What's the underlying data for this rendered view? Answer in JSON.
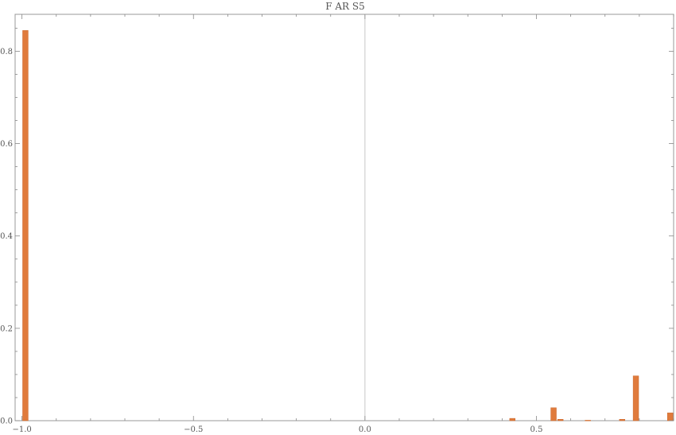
{
  "chart_data": {
    "type": "bar",
    "title": "F AR S5",
    "xlabel": "",
    "ylabel": "",
    "xlim": [
      -1.02,
      0.9
    ],
    "ylim": [
      0,
      0.88
    ],
    "bin_width": 0.02,
    "bars": [
      {
        "x": -0.99,
        "value": 0.845
      },
      {
        "x": 0.43,
        "value": 0.005
      },
      {
        "x": 0.55,
        "value": 0.028
      },
      {
        "x": 0.57,
        "value": 0.003
      },
      {
        "x": 0.65,
        "value": 0.001
      },
      {
        "x": 0.75,
        "value": 0.003
      },
      {
        "x": 0.79,
        "value": 0.097
      },
      {
        "x": 0.89,
        "value": 0.017
      }
    ],
    "x_ticks": [
      {
        "value": -1.0,
        "label": "−1.0"
      },
      {
        "value": -0.5,
        "label": "−0.5"
      },
      {
        "value": 0.0,
        "label": "0.0"
      },
      {
        "value": 0.5,
        "label": "0.5"
      }
    ],
    "y_ticks": [
      {
        "value": 0.0,
        "label": "0.0"
      },
      {
        "value": 0.2,
        "label": "0.2"
      },
      {
        "value": 0.4,
        "label": "0.4"
      },
      {
        "value": 0.6,
        "label": "0.6"
      },
      {
        "value": 0.8,
        "label": "0.8"
      }
    ],
    "minor_x_step": 0.1,
    "minor_y_step": 0.05,
    "grid": false,
    "colors": {
      "bar_fill": "#e07b3c",
      "bar_stroke": "#c9662a",
      "axis": "#999999",
      "zero_line": "#c8c8c8",
      "tick": "#888888"
    }
  }
}
